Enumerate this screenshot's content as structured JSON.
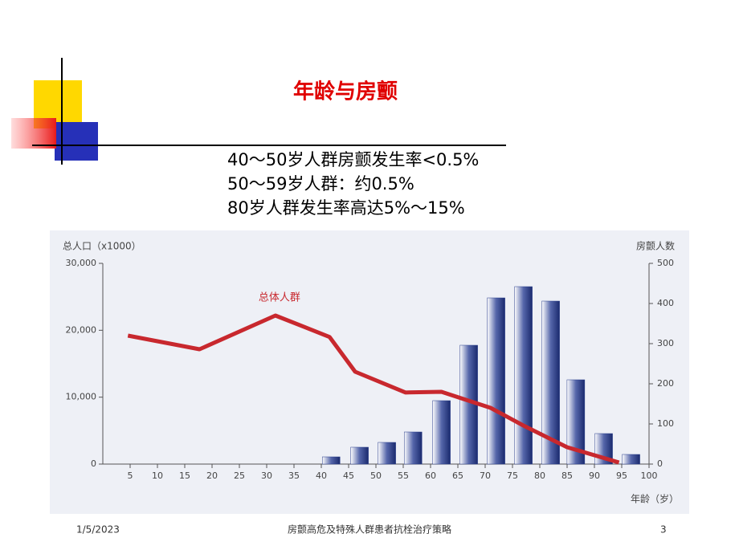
{
  "slide": {
    "title": "年龄与房颤",
    "lines": [
      "40～50岁人群房颤发生率<0.5%",
      "50～59岁人群：约0.5%",
      "80岁人群发生率高达5%～15%"
    ],
    "footer": {
      "date": "1/5/2023",
      "text": "房颤高危及特殊人群患者抗栓治疗策略",
      "page": "3"
    }
  },
  "chart_data": {
    "type": "combo",
    "xlabel": "年龄（岁）",
    "ylabel": "总人口（x1000）",
    "y2label": "房颤人数",
    "xlim": [
      0,
      100
    ],
    "xticks": [
      5,
      10,
      15,
      20,
      25,
      30,
      35,
      40,
      45,
      50,
      55,
      60,
      65,
      70,
      75,
      80,
      85,
      90,
      95,
      100
    ],
    "ylim": [
      0,
      30000
    ],
    "yticks": [
      0,
      {
        "value": 10000,
        "label": "10,000"
      },
      {
        "value": 20000,
        "label": "20,000"
      },
      {
        "value": 30000,
        "label": "30,000"
      }
    ],
    "y2lim": [
      0,
      500
    ],
    "y2ticks": [
      0,
      100,
      200,
      300,
      400,
      500
    ],
    "series": [
      {
        "type": "bar",
        "axis": "y2",
        "color": "#2b3f8c",
        "x": [
          41.8,
          47,
          52,
          56.8,
          62,
          67,
          72,
          77,
          82,
          86.6,
          91.7,
          96.7
        ],
        "values": [
          18,
          42,
          54,
          80,
          158,
          296,
          414,
          442,
          406,
          210,
          76,
          24
        ]
      },
      {
        "type": "line",
        "name": "总体人群",
        "color": "#c8282e",
        "x": [
          4.6,
          17.7,
          31.6,
          41.5,
          46.2,
          55.4,
          62,
          71,
          77,
          85,
          94.5
        ],
        "values": [
          19200,
          17160,
          22200,
          19000,
          13800,
          10700,
          10800,
          8400,
          5760,
          2520,
          240
        ]
      }
    ]
  }
}
